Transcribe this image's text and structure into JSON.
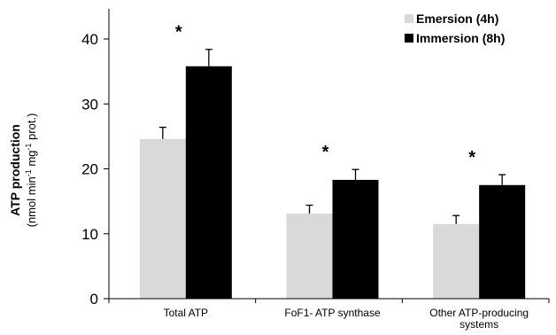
{
  "chart_data": {
    "type": "bar",
    "categories": [
      [
        "Total ATP"
      ],
      [
        "FoF1- ATP synthase"
      ],
      [
        "Other ATP-producing",
        "systems"
      ]
    ],
    "series": [
      {
        "name": "Emersion (4h)",
        "color": "#d9d9d9",
        "values": [
          24.6,
          13.1,
          11.5
        ],
        "errors": [
          1.8,
          1.3,
          1.3
        ]
      },
      {
        "name": "Immersion (8h)",
        "color": "#000000",
        "values": [
          35.8,
          18.3,
          17.5
        ],
        "errors": [
          2.6,
          1.6,
          1.6
        ]
      }
    ],
    "significance": [
      "*",
      "*",
      "*"
    ],
    "ylabel": {
      "main": "ATP production",
      "unit_parts": [
        "(nmol min",
        "-1",
        " mg",
        "-1",
        " prot.)"
      ]
    },
    "ylim": [
      0,
      40
    ],
    "yticks": [
      0,
      10,
      20,
      30,
      40
    ],
    "legend_position": "top-right",
    "grid": false
  }
}
